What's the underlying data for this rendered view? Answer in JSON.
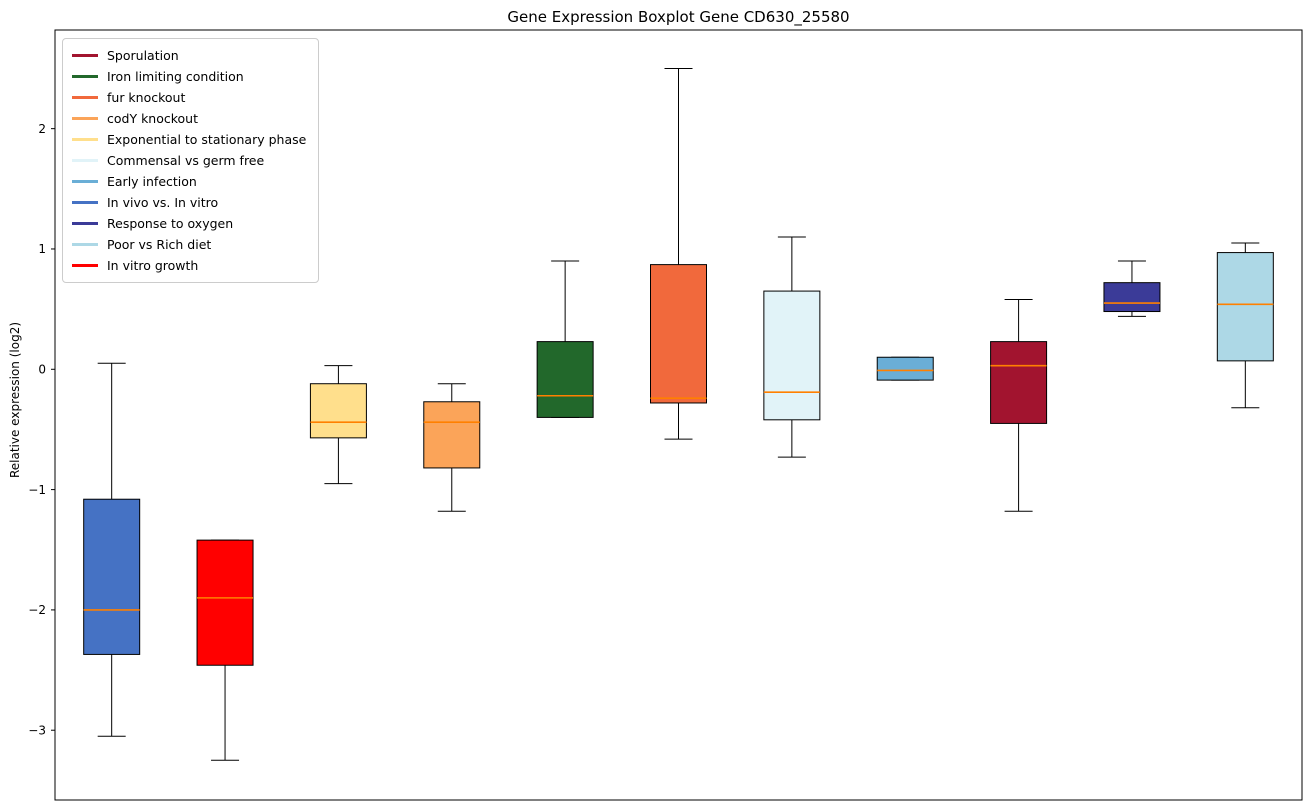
{
  "chart_data": {
    "type": "boxplot",
    "title": "Gene Expression Boxplot Gene CD630_25580",
    "xlabel": "",
    "ylabel": "Relative expression (log2)",
    "ylim": [
      -3.58,
      2.82
    ],
    "yticks": [
      2,
      1,
      0,
      -1,
      -2,
      -3
    ],
    "grid": false,
    "legend_position": "upper left",
    "median_color": "#FF8000",
    "box_edge_color": "#000000",
    "series": [
      {
        "label": "Sporulation",
        "color": "#A2142F",
        "whislo": -1.18,
        "q1": -0.45,
        "med": 0.03,
        "q3": 0.23,
        "whishi": 0.58
      },
      {
        "label": "Iron limiting condition",
        "color": "#22682B",
        "whislo": -0.4,
        "q1": -0.4,
        "med": -0.22,
        "q3": 0.23,
        "whishi": 0.9
      },
      {
        "label": "fur knockout",
        "color": "#F1693C",
        "whislo": -0.58,
        "q1": -0.28,
        "med": -0.24,
        "q3": 0.87,
        "whishi": 2.5
      },
      {
        "label": "codY knockout",
        "color": "#FBA459",
        "whislo": -1.18,
        "q1": -0.82,
        "med": -0.44,
        "q3": -0.27,
        "whishi": -0.12
      },
      {
        "label": "Exponential to stationary phase",
        "color": "#FFDF8C",
        "whislo": -0.95,
        "q1": -0.57,
        "med": -0.44,
        "q3": -0.12,
        "whishi": 0.03
      },
      {
        "label": "Commensal vs germ free",
        "color": "#E1F3F8",
        "whislo": -0.73,
        "q1": -0.42,
        "med": -0.19,
        "q3": 0.65,
        "whishi": 1.1
      },
      {
        "label": "Early infection",
        "color": "#6AAED6",
        "whislo": -0.09,
        "q1": -0.09,
        "med": -0.01,
        "q3": 0.1,
        "whishi": 0.1
      },
      {
        "label": "In vivo vs. In vitro",
        "color": "#4572C4",
        "whislo": -3.05,
        "q1": -2.37,
        "med": -2.0,
        "q3": -1.08,
        "whishi": 0.05
      },
      {
        "label": "Response to oxygen",
        "color": "#3B3B98",
        "whislo": 0.44,
        "q1": 0.48,
        "med": 0.55,
        "q3": 0.72,
        "whishi": 0.9
      },
      {
        "label": "Poor vs Rich diet",
        "color": "#ADD8E6",
        "whislo": -0.32,
        "q1": 0.07,
        "med": 0.54,
        "q3": 0.97,
        "whishi": 1.05
      },
      {
        "label": "In vitro growth",
        "color": "#FF0000",
        "whislo": -3.25,
        "q1": -2.46,
        "med": -1.9,
        "q3": -1.42,
        "whishi": -1.42
      }
    ],
    "box_order": [
      "In vivo vs. In vitro",
      "In vitro growth",
      "Exponential to stationary phase",
      "codY knockout",
      "Iron limiting condition",
      "fur knockout",
      "Commensal vs germ free",
      "Early infection",
      "Sporulation",
      "Response to oxygen",
      "Poor vs Rich diet"
    ]
  }
}
